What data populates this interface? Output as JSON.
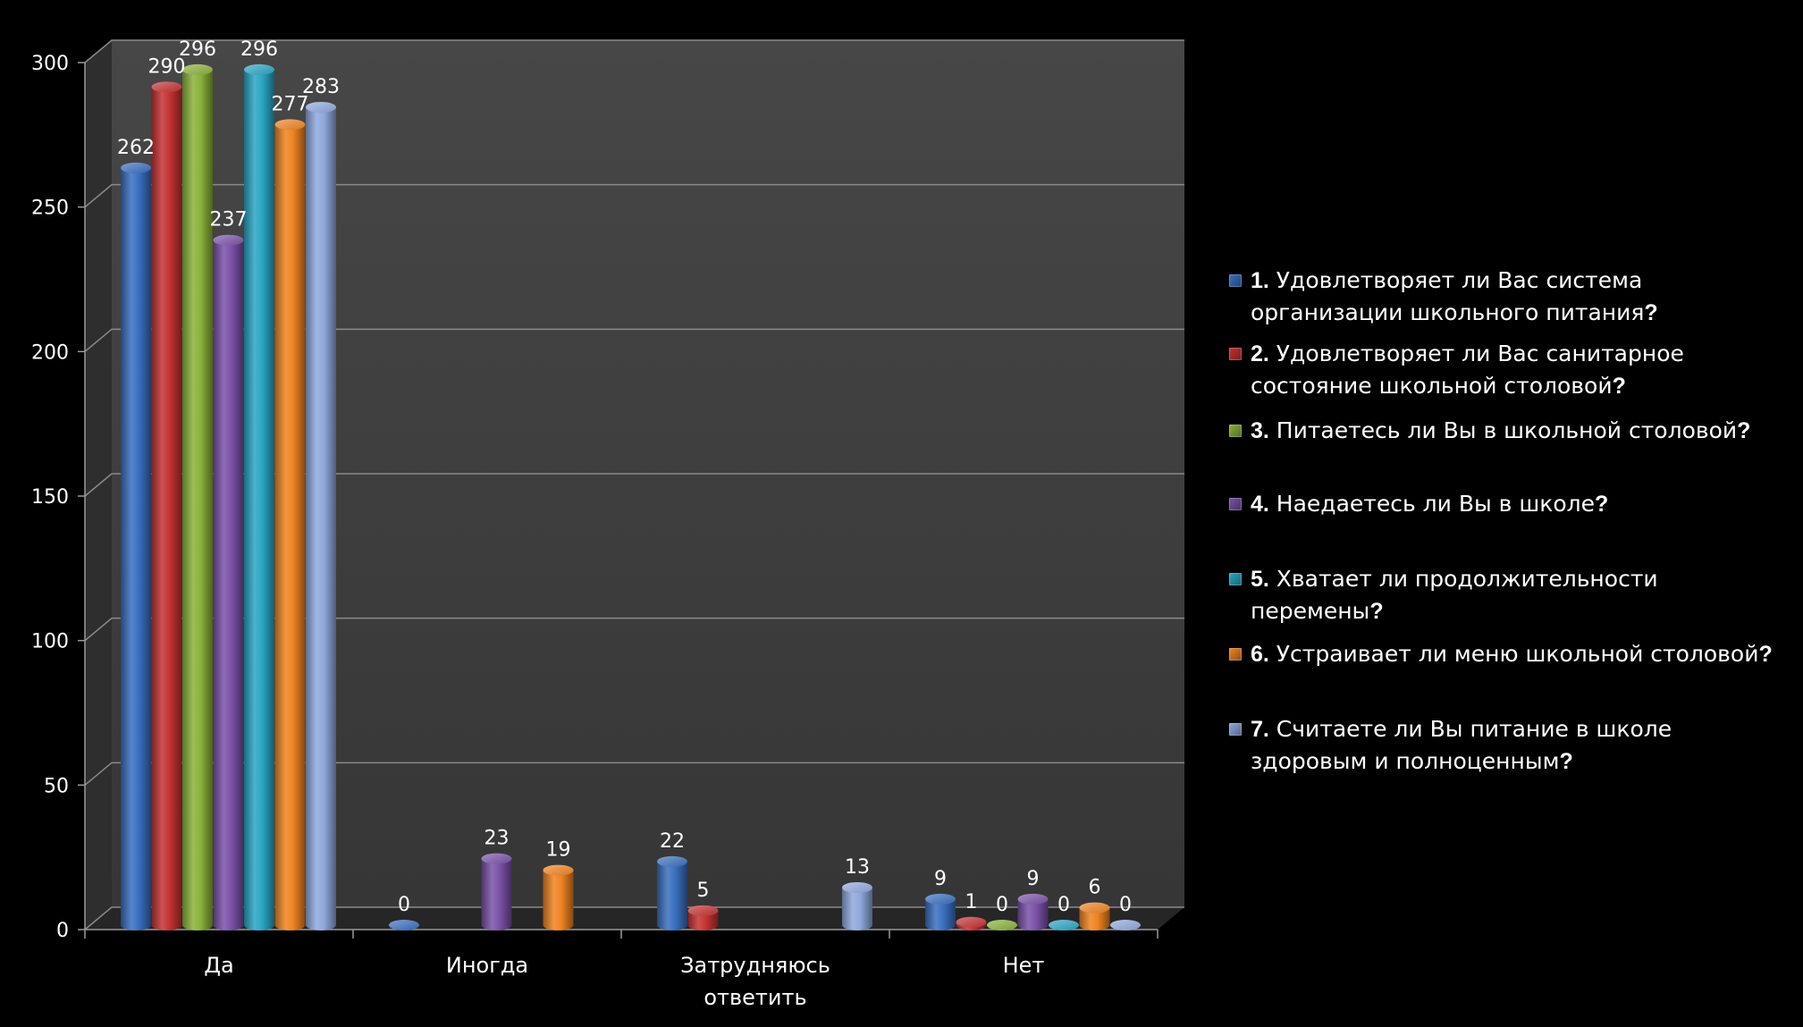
{
  "chart_data": {
    "type": "bar",
    "categories": [
      "Да",
      "Иногда",
      "Затрудняюсь ответить",
      "Нет"
    ],
    "series": [
      {
        "name": "1. Удовлетворяет ли Вас система организации школьного питания?",
        "num": "1.",
        "text": "Удовлетворяет ли Вас система организации школьного питания",
        "values": [
          262,
          0,
          22,
          9
        ]
      },
      {
        "name": "2. Удовлетворяет ли Вас санитарное состояние школьной столовой?",
        "num": "2.",
        "text": "Удовлетворяет ли Вас санитарное состояние школьной столовой",
        "values": [
          290,
          null,
          5,
          1
        ]
      },
      {
        "name": "3. Питаетесь ли Вы в школьной столовой?",
        "num": "3.",
        "text": "Питаетесь ли Вы в школьной столовой",
        "values": [
          296,
          null,
          null,
          0
        ]
      },
      {
        "name": "4. Наедаетесь ли Вы в школе?",
        "num": "4.",
        "text": "Наедаетесь ли Вы в школе",
        "values": [
          237,
          23,
          null,
          9
        ]
      },
      {
        "name": "5. Хватает ли продолжительности перемены?",
        "num": "5.",
        "text": "Хватает ли продолжительности перемены",
        "values": [
          296,
          null,
          null,
          0
        ]
      },
      {
        "name": "6. Устраивает ли меню школьной столовой?",
        "num": "6.",
        "text": "Устраивает ли меню школьной столовой",
        "values": [
          277,
          19,
          null,
          6
        ]
      },
      {
        "name": "7. Считаете ли Вы питание в школе здоровым и полноценным?",
        "num": "7.",
        "text": "Считаете ли Вы питание в школе здоровым и полноценным",
        "values": [
          283,
          null,
          13,
          0
        ]
      }
    ],
    "yticks": [
      0,
      50,
      100,
      150,
      200,
      250,
      300
    ],
    "ylim": [
      0,
      300
    ],
    "grid": true,
    "legend": "right",
    "style": "3d-cylinder"
  },
  "colors": {
    "background": "#000000",
    "plot_wall": "#3c3c3c",
    "series": [
      "#3a6fbf",
      "#c43232",
      "#8ab23a",
      "#7a52a8",
      "#2aa6c4",
      "#ef8422",
      "#8fa9dd"
    ]
  }
}
